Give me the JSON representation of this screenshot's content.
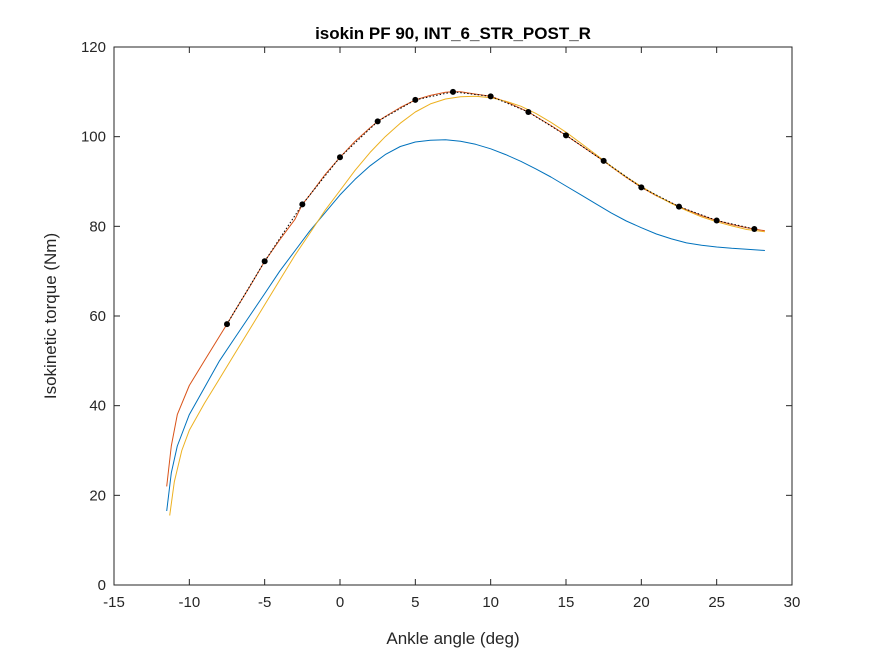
{
  "chart_data": {
    "type": "line",
    "title": "isokin PF 90, INT_6_STR_POST_R",
    "xlabel": "Ankle angle (deg)",
    "ylabel": "Isokinetic torque (Nm)",
    "xlim": [
      -15,
      30
    ],
    "ylim": [
      0,
      120
    ],
    "xticks": [
      -15,
      -10,
      -5,
      0,
      5,
      10,
      15,
      20,
      25,
      30
    ],
    "yticks": [
      0,
      20,
      40,
      60,
      80,
      100,
      120
    ],
    "grid": false,
    "legend": "none",
    "series": [
      {
        "color": "#0072BD",
        "style": "solid",
        "x": [
          -11.5,
          -11.2,
          -10.8,
          -10,
          -9,
          -8,
          -7,
          -6,
          -5,
          -4,
          -3,
          -2,
          -1,
          0,
          1,
          2,
          3,
          4,
          5,
          6,
          7,
          8,
          9,
          10,
          11,
          12,
          13,
          14,
          15,
          16,
          17,
          18,
          19,
          20,
          21,
          22,
          23,
          24,
          25,
          26,
          27,
          28.2
        ],
        "y": [
          16.5,
          25,
          31,
          38,
          44,
          50,
          55,
          60,
          65,
          70,
          74.5,
          79,
          83,
          87,
          90.5,
          93.5,
          96,
          97.8,
          98.8,
          99.2,
          99.3,
          99,
          98.3,
          97.3,
          96,
          94.5,
          92.8,
          91,
          89,
          87,
          85,
          83,
          81.2,
          79.7,
          78.3,
          77.2,
          76.3,
          75.8,
          75.4,
          75.1,
          74.9,
          74.6
        ]
      },
      {
        "color": "#D95319",
        "style": "solid",
        "x": [
          -11.5,
          -11.2,
          -10.8,
          -10,
          -9,
          -8,
          -7.5,
          -7,
          -6,
          -5,
          -4,
          -3,
          -2.5,
          -2,
          -1,
          0,
          1,
          2,
          2.5,
          3,
          4,
          5,
          6,
          7,
          7.5,
          8,
          9,
          10,
          11,
          12,
          12.5,
          13,
          14,
          15,
          16,
          17,
          17.5,
          18,
          19,
          20,
          21,
          22,
          22.5,
          23,
          24,
          25,
          26,
          27,
          27.5,
          28.2
        ],
        "y": [
          22,
          31,
          38,
          44.5,
          50,
          55.5,
          58.2,
          61,
          66.5,
          72.2,
          77,
          81.5,
          84.9,
          87,
          91.5,
          95.4,
          99,
          102,
          103.4,
          104.5,
          106.5,
          108.2,
          109.2,
          109.9,
          110,
          110,
          109.5,
          109,
          107.8,
          106.3,
          105.5,
          104.5,
          102.5,
          100.3,
          98,
          95.7,
          94.6,
          93.3,
          90.9,
          88.7,
          86.8,
          85.2,
          84.4,
          83.7,
          82.4,
          81.3,
          80.4,
          79.7,
          79.4,
          79
        ]
      },
      {
        "color": "#EDB120",
        "style": "solid",
        "x": [
          -11.3,
          -11,
          -10.5,
          -10,
          -9,
          -8,
          -7,
          -6,
          -5,
          -4,
          -3,
          -2,
          -1,
          0,
          1,
          2,
          3,
          4,
          5,
          6,
          7,
          8,
          9,
          10,
          11,
          12,
          13,
          14,
          15,
          16,
          17,
          18,
          19,
          20,
          21,
          22,
          23,
          24,
          25,
          26,
          27,
          28.2
        ],
        "y": [
          15.5,
          23,
          30,
          34.5,
          40.5,
          46,
          51.5,
          57,
          62.5,
          68,
          73.5,
          78.5,
          83.5,
          88,
          92.5,
          96.5,
          100,
          103,
          105.5,
          107.3,
          108.4,
          108.9,
          109,
          108.7,
          107.9,
          106.8,
          105.2,
          103.2,
          101,
          98.5,
          96,
          93.4,
          91,
          88.9,
          86.9,
          85.1,
          83.5,
          82.1,
          81,
          80.1,
          79.3,
          78.8
        ]
      },
      {
        "color": "#000000",
        "style": "dotted",
        "x": [
          -7.5,
          -5,
          -2.5,
          0,
          2.5,
          5,
          7.5,
          10,
          12.5,
          15,
          17.5,
          20,
          22.5,
          25,
          27.5
        ],
        "y": [
          58.2,
          72.2,
          84.9,
          95.4,
          103.4,
          108.2,
          110,
          109,
          105.5,
          100.3,
          94.6,
          88.7,
          84.4,
          81.3,
          79.4
        ]
      },
      {
        "color": "#000000",
        "style": "markers",
        "x": [
          -7.5,
          -5,
          -2.5,
          0,
          2.5,
          5,
          7.5,
          10,
          12.5,
          15,
          17.5,
          20,
          22.5,
          25,
          27.5
        ],
        "y": [
          58.2,
          72.2,
          84.9,
          95.4,
          103.4,
          108.2,
          110,
          109,
          105.5,
          100.3,
          94.6,
          88.7,
          84.4,
          81.3,
          79.4
        ]
      }
    ]
  }
}
